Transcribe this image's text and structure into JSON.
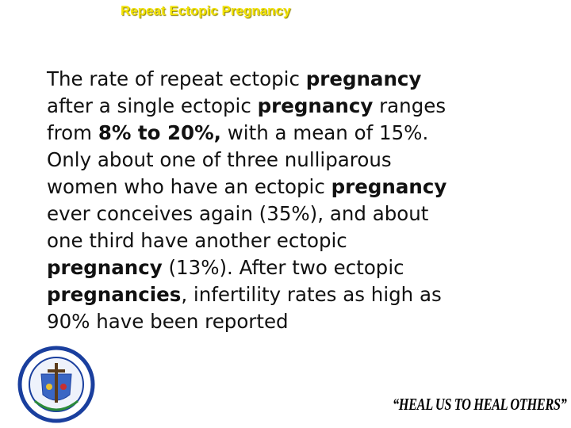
{
  "header": {
    "title": "Repeat Ectopic Pregnancy"
  },
  "body": {
    "lines": [
      [
        {
          "text": "The rate of repeat ectopic "
        },
        {
          "text": "pregnancy",
          "bold": true
        }
      ],
      [
        {
          "text": "after a single ectopic "
        },
        {
          "text": "pregnancy",
          "bold": true
        },
        {
          "text": " ranges"
        }
      ],
      [
        {
          "text": "from "
        },
        {
          "text": "8% to 20%,",
          "bold": true
        },
        {
          "text": " with a mean of 15%."
        }
      ],
      [
        {
          "text": "Only about one of three nulliparous"
        }
      ],
      [
        {
          "text": "women who have an ectopic "
        },
        {
          "text": "pregnancy",
          "bold": true
        }
      ],
      [
        {
          "text": "ever conceives again (35%), and about"
        }
      ],
      [
        {
          "text": "one third have another ectopic"
        }
      ],
      [
        {
          "text": "pregnancy",
          "bold": true
        },
        {
          "text": " (13%). After two ectopic"
        }
      ],
      [
        {
          "text": "pregnancies",
          "bold": true
        },
        {
          "text": ", infertility rates as high as"
        }
      ],
      [
        {
          "text": "90% have been reported"
        }
      ]
    ]
  },
  "footer": {
    "motto": "“HEAL US TO HEAL OTHERS”"
  }
}
